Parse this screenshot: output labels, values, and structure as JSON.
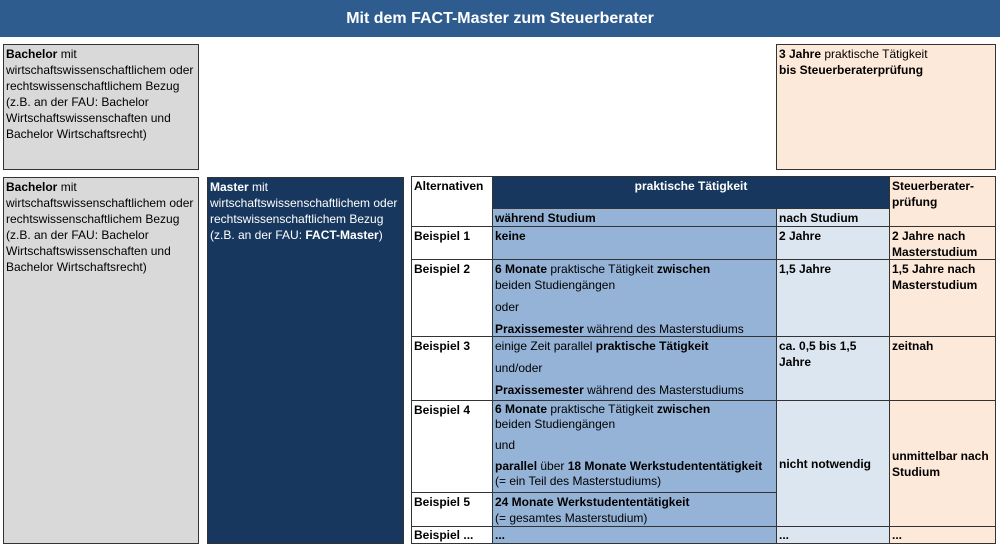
{
  "title": "Mit dem FACT-Master zum Steuerberater",
  "bachelor_box": {
    "bold": "Bachelor",
    "text": " mit wirtschaftswissenschaftlichem oder rechtswissenschaftlichem Bezug (z.B. an der FAU: Bachelor Wirtschaftswissenschaften und Bachelor Wirtschaftsrecht)"
  },
  "top_right": {
    "b1": "3 Jahre",
    "t1": " praktische Tätigkeit",
    "b2": "bis Steuerberaterprüfung"
  },
  "master_box": {
    "bold": "Master",
    "text": " mit wirtschaftswissenschaftlichem oder rechtswissenschaftlichem Bezug (z.B. an der FAU: ",
    "bold2": "FACT-Master",
    "end": ")"
  },
  "table": {
    "h_alt": "Alternativen",
    "h_prak": "praktische Tätigkeit",
    "h_during": "während Studium",
    "h_after": "nach Studium",
    "h_exam": "Steuerberater-prüfung",
    "rows": [
      {
        "label": "Beispiel 1",
        "during": "keine",
        "after": "2 Jahre",
        "exam": "2 Jahre nach Masterstudium"
      },
      {
        "label": "Beispiel 2",
        "d1b": "6 Monate",
        "d1": " praktische Tätigkeit ",
        "d1b2": "zwischen",
        "d2": "beiden Studiengängen",
        "d3": "oder",
        "d4b": "Praxissemester",
        "d4": " während des Masterstudiums",
        "after": "1,5 Jahre",
        "exam": "1,5 Jahre nach Masterstudium"
      },
      {
        "label": "Beispiel 3",
        "d1": "einige Zeit parallel ",
        "d1b": "praktische Tätigkeit",
        "d2": "und/oder",
        "d3b": "Praxissemester",
        "d3": " während des Masterstudiums",
        "after": "ca. 0,5 bis 1,5 Jahre",
        "exam": "zeitnah"
      },
      {
        "label": "Beispiel 4",
        "d1b": "6 Monate",
        "d1": " praktische Tätigkeit ",
        "d1b2": "zwischen",
        "d2": "beiden Studiengängen",
        "d3": "und",
        "d4b": "parallel",
        "d4": " über ",
        "d4b2": "18 Monate Werkstudententätigkeit",
        "d5": "(= ein Teil des Masterstudiums)"
      },
      {
        "label": "Beispiel 5",
        "d1b": "24 Monate Werkstudententätigkeit",
        "d2": "(= gesamtes Masterstudium)"
      },
      {
        "label": "Beispiel ...",
        "during": "...",
        "after": "...",
        "exam": "..."
      }
    ],
    "merged_after": "nicht notwendig",
    "merged_exam": "unmittelbar nach Studium"
  }
}
